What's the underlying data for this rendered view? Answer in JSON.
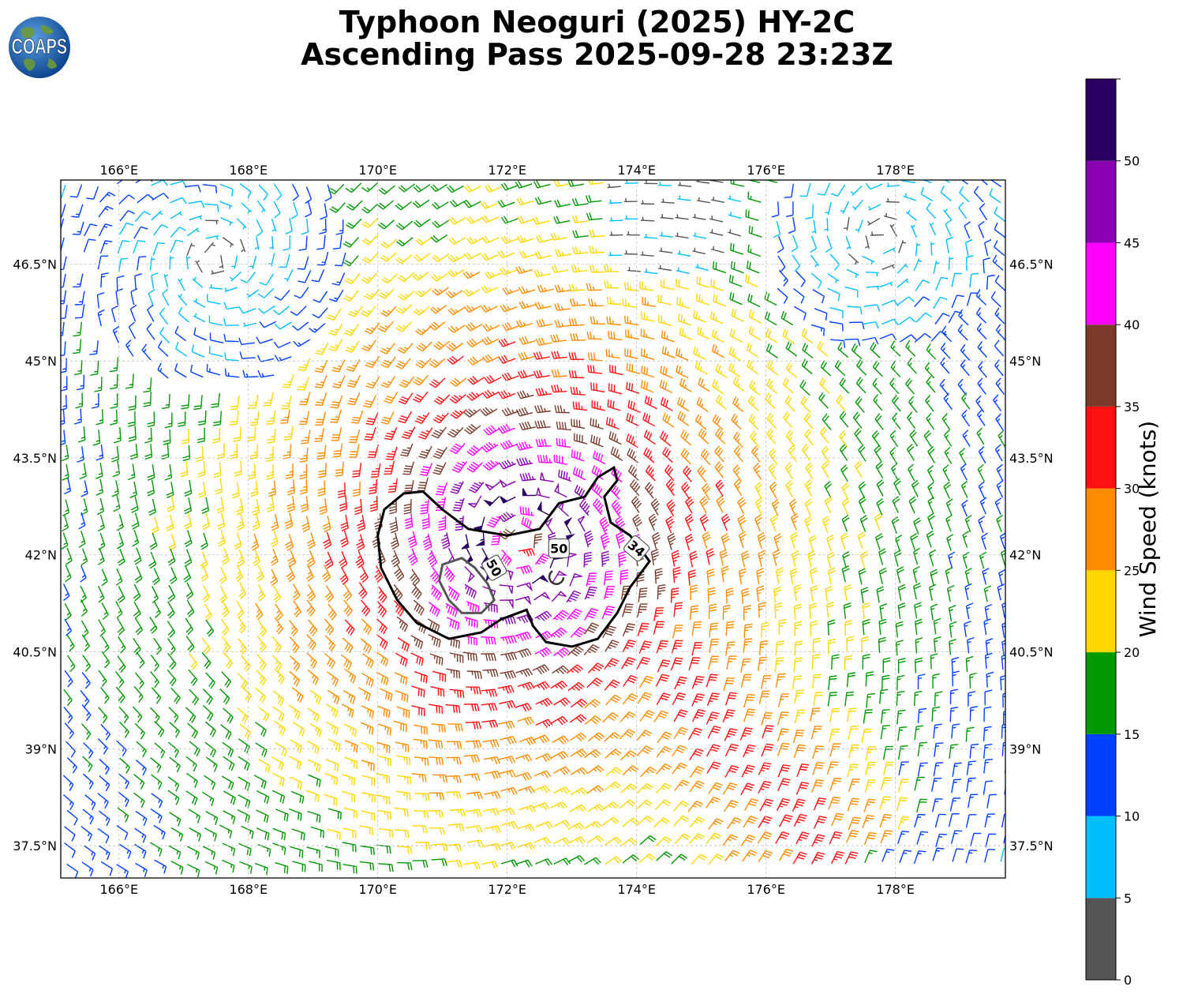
{
  "title": {
    "line1": "Typhoon Neoguri (2025) HY-2C",
    "line2": "Ascending Pass 2025-09-28 23:23Z"
  },
  "logo": {
    "text": "COAPS",
    "icon": "globe-icon"
  },
  "map": {
    "lon_range": [
      165.1,
      179.7
    ],
    "lat_range": [
      37.0,
      47.8
    ],
    "lon_ticks": [
      166,
      168,
      170,
      172,
      174,
      176,
      178
    ],
    "lon_tick_labels": [
      "166°E",
      "168°E",
      "170°E",
      "172°E",
      "174°E",
      "176°E",
      "178°E"
    ],
    "lat_ticks": [
      37.5,
      39,
      40.5,
      42,
      43.5,
      45,
      46.5
    ],
    "lat_tick_labels": [
      "37.5°N",
      "39°N",
      "40.5°N",
      "42°N",
      "43.5°N",
      "45°N",
      "46.5°N"
    ],
    "gridlines": true,
    "storm_center": {
      "lon": 172.2,
      "lat": 42.2
    },
    "contour_labels": [
      {
        "text": "34",
        "lon": 174.0,
        "lat": 42.1
      },
      {
        "text": "50",
        "lon": 172.8,
        "lat": 42.1
      },
      {
        "text": "50",
        "lon": 171.8,
        "lat": 41.8
      }
    ]
  },
  "colorbar": {
    "label": "Wind Speed (knots)",
    "range": [
      0,
      55
    ],
    "bounds": [
      0,
      5,
      10,
      15,
      20,
      25,
      30,
      35,
      40,
      45,
      50,
      55
    ],
    "colors": [
      "#555555",
      "#00bfff",
      "#0040ff",
      "#009900",
      "#ffd700",
      "#ff8c00",
      "#ff1010",
      "#7b3a2a",
      "#ff00ff",
      "#8800b0",
      "#2a0060"
    ],
    "ticks": [
      0,
      5,
      10,
      15,
      20,
      25,
      30,
      35,
      40,
      45,
      50
    ],
    "tick_labels": [
      "0",
      "5",
      "10",
      "15",
      "20",
      "25",
      "30",
      "35",
      "40",
      "45",
      "50"
    ]
  }
}
